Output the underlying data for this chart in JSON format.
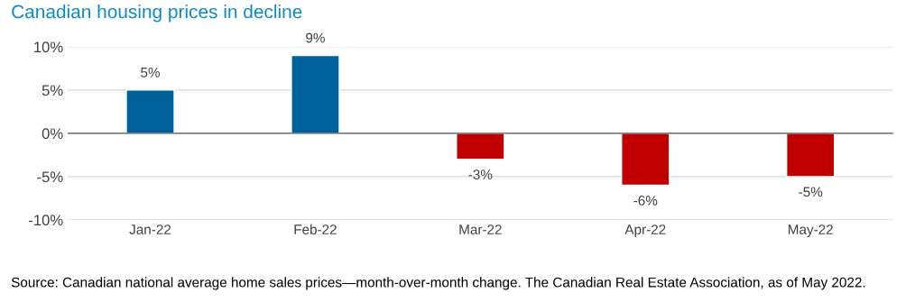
{
  "chart_data": {
    "type": "bar",
    "title": "Canadian housing prices in decline",
    "categories": [
      "Jan-22",
      "Feb-22",
      "Mar-22",
      "Apr-22",
      "May-22"
    ],
    "values": [
      5,
      9,
      -3,
      -6,
      -5
    ],
    "colors": [
      "#00629b",
      "#00629b",
      "#c00000",
      "#c00000",
      "#c00000"
    ],
    "value_labels": [
      "5%",
      "9%",
      "-3%",
      "-6%",
      "-5%"
    ],
    "ylim": [
      -10,
      10
    ],
    "yticks": [
      {
        "value": -10,
        "label": "-10%"
      },
      {
        "value": -5,
        "label": "-5%"
      },
      {
        "value": 0,
        "label": "0%"
      },
      {
        "value": 5,
        "label": "5%"
      },
      {
        "value": 10,
        "label": "10%"
      }
    ],
    "grid": "y",
    "annotations": [
      "Source: Canadian national average home sales prices—month-over-month change. The Canadian Real Estate Association, as of May 2022."
    ]
  }
}
